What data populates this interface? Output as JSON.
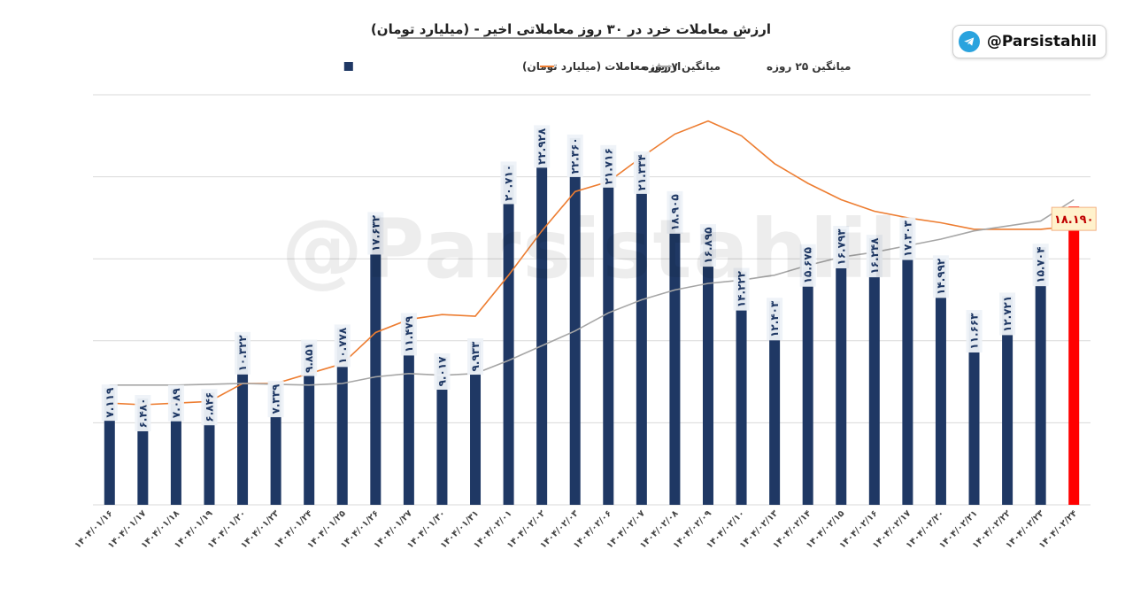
{
  "badge": {
    "handle": "@Parsistahlil",
    "icon": "telegram-icon"
  },
  "watermark": "@Parsistahlil",
  "chart_data": {
    "type": "bar",
    "title": "ارزش معاملات خرد در ۳۰ روز معاملاتی اخیر - (میلیارد تومان)",
    "legend_position": "top",
    "grid": true,
    "ylim": [
      0,
      25000
    ],
    "categories": [
      "۱۴۰۴/۰۱/۱۶",
      "۱۴۰۴/۰۱/۱۷",
      "۱۴۰۴/۰۱/۱۸",
      "۱۴۰۴/۰۱/۱۹",
      "۱۴۰۴/۰۱/۲۰",
      "۱۴۰۴/۰۱/۲۳",
      "۱۴۰۴/۰۱/۲۴",
      "۱۴۰۴/۰۱/۲۵",
      "۱۴۰۴/۰۱/۲۶",
      "۱۴۰۴/۰۱/۲۷",
      "۱۴۰۴/۰۱/۳۰",
      "۱۴۰۴/۰۱/۳۱",
      "۱۴۰۴/۰۲/۰۱",
      "۱۴۰۴/۰۲/۰۲",
      "۱۴۰۴/۰۲/۰۳",
      "۱۴۰۴/۰۲/۰۶",
      "۱۴۰۴/۰۲/۰۷",
      "۱۴۰۴/۰۲/۰۸",
      "۱۴۰۴/۰۲/۰۹",
      "۱۴۰۴/۰۲/۱۰",
      "۱۴۰۴/۰۲/۱۳",
      "۱۴۰۴/۰۲/۱۴",
      "۱۴۰۴/۰۲/۱۵",
      "۱۴۰۴/۰۲/۱۶",
      "۱۴۰۴/۰۲/۱۷",
      "۱۴۰۴/۰۲/۲۰",
      "۱۴۰۴/۰۲/۲۱",
      "۱۴۰۴/۰۲/۲۲",
      "۱۴۰۴/۰۲/۲۳",
      "۱۴۰۴/۰۲/۲۴"
    ],
    "series": [
      {
        "name": "ارزش معاملات (میلیارد تومان)",
        "type": "bar",
        "color": "#1f3864",
        "last_bar_color": "#ff0000",
        "values": [
          7119,
          6480,
          7089,
          6846,
          10322,
          7339,
          9851,
          10778,
          17632,
          11479,
          9017,
          9933,
          20710,
          22928,
          22360,
          21716,
          21334,
          18905,
          16895,
          14222,
          12403,
          15675,
          16793,
          16248,
          17303,
          14992,
          11663,
          12721,
          15704,
          18190
        ],
        "labels": [
          "۷.۱۱۹",
          "۶.۴۸۰",
          "۷.۰۸۹",
          "۶.۸۴۶",
          "۱۰.۳۲۲",
          "۷.۳۳۹",
          "۹.۸۵۱",
          "۱۰.۷۷۸",
          "۱۷.۶۳۲",
          "۱۱.۴۷۹",
          "۹.۰۱۷",
          "۹.۹۳۳",
          "۲۰.۷۱۰",
          "۲۲.۹۲۸",
          "۲۲.۳۶۰",
          "۲۱.۷۱۶",
          "۲۱.۳۳۴",
          "۱۸.۹۰۵",
          "۱۶.۸۹۵",
          "۱۴.۲۲۲",
          "۱۲.۴۰۳",
          "۱۵.۶۷۵",
          "۱۶.۷۹۳",
          "۱۶.۲۴۸",
          "۱۷.۳۰۳",
          "۱۴.۹۹۲",
          "۱۱.۶۶۳",
          "۱۲.۷۲۱",
          "۱۵.۷۰۴",
          "۱۸.۱۹۰"
        ]
      },
      {
        "name": "میانگین ۷ روزه",
        "type": "line",
        "color": "#ed7d31",
        "values": [
          6200,
          6100,
          6200,
          6300,
          7400,
          7400,
          8000,
          8600,
          10500,
          11300,
          11600,
          11500,
          14000,
          16700,
          19100,
          19700,
          21200,
          22600,
          23400,
          22500,
          20800,
          19600,
          18600,
          17900,
          17500,
          17200,
          16800,
          16800,
          16800,
          17000
        ]
      },
      {
        "name": "میانگین ۲۵ روزه",
        "type": "line",
        "color": "#a6a6a6",
        "values": [
          7300,
          7300,
          7300,
          7350,
          7400,
          7350,
          7300,
          7400,
          7800,
          8000,
          7900,
          8000,
          8800,
          9700,
          10600,
          11700,
          12500,
          13100,
          13500,
          13700,
          14000,
          14600,
          15100,
          15400,
          15800,
          16200,
          16700,
          17000,
          17300,
          18600
        ]
      }
    ]
  }
}
